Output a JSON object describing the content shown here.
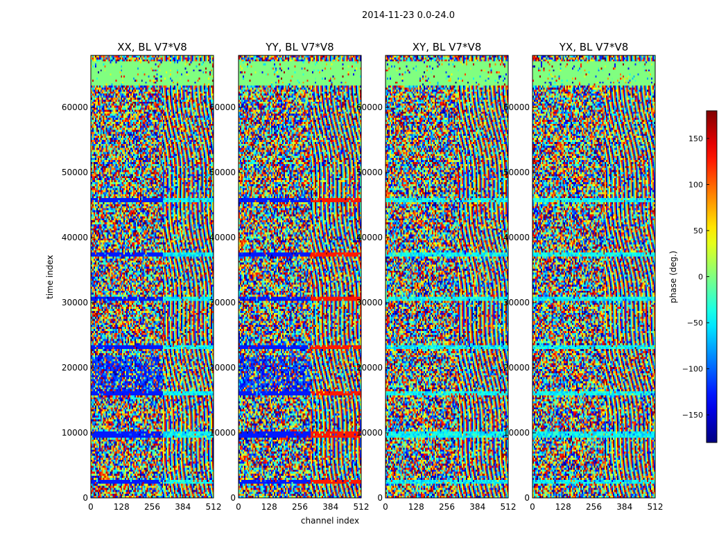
{
  "chart_data": {
    "type": "heatmap",
    "title": "2014-11-23 0.0-24.0",
    "xlabel": "channel index",
    "ylabel": "time index",
    "xlim": [
      0,
      512
    ],
    "ylim": [
      0,
      68000
    ],
    "x_ticks": [
      0,
      128,
      256,
      384,
      512
    ],
    "y_ticks": [
      0,
      10000,
      20000,
      30000,
      40000,
      50000,
      60000
    ],
    "panels": [
      {
        "title": "XX, BL V7*V8"
      },
      {
        "title": "YY, BL V7*V8"
      },
      {
        "title": "XY, BL V7*V8"
      },
      {
        "title": "YX, BL V7*V8"
      }
    ],
    "colorbar": {
      "label": "phase (deg.)",
      "range": [
        -180,
        180
      ],
      "ticks": [
        -150,
        -100,
        -50,
        0,
        50,
        100,
        150
      ],
      "colormap": "jet"
    }
  }
}
